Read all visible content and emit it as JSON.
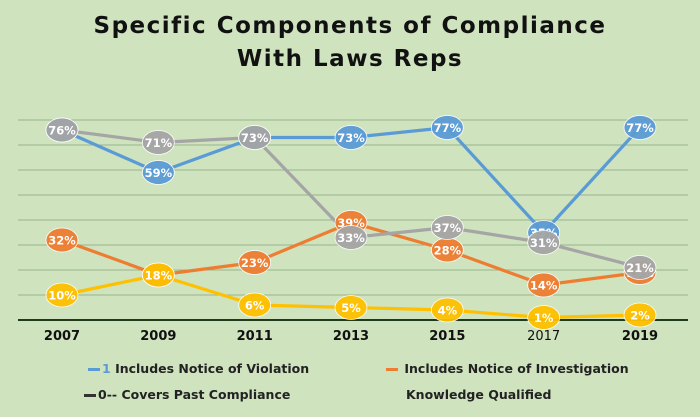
{
  "title_line1": "Specific Components of Compliance",
  "title_line2": "With Laws Reps",
  "chart_data": {
    "type": "line",
    "title": "Specific Components of Compliance With Laws Reps",
    "categories": [
      "2007",
      "2009",
      "2011",
      "2013",
      "2015",
      "2017",
      "2019"
    ],
    "ylim": [
      0,
      80
    ],
    "grid": true,
    "legend_position": "bottom",
    "series": [
      {
        "name": "Includes Notice of Violation",
        "color": "#5b9bd5",
        "values": [
          76,
          59,
          73,
          73,
          77,
          35,
          77
        ],
        "labels": [
          "76%",
          "59%",
          "73%",
          "73%",
          "77%",
          "35%",
          "77%"
        ]
      },
      {
        "name": "Includes Notice of Investigation",
        "color": "#ed7d31",
        "values": [
          32,
          18,
          23,
          39,
          28,
          14,
          19
        ],
        "labels": [
          "32%",
          "",
          "23%",
          "39%",
          "28%",
          "14%",
          "19%"
        ]
      },
      {
        "name": "Covers Past Compliance",
        "color": "#a5a5a5",
        "values": [
          76,
          71,
          73,
          33,
          37,
          31,
          21
        ],
        "labels": [
          "76%",
          "71%",
          "73%",
          "33%",
          "37%",
          "31%",
          "21%"
        ]
      },
      {
        "name": "Knowledge Qualified",
        "color": "#ffc000",
        "values": [
          10,
          18,
          6,
          5,
          4,
          1,
          2
        ],
        "labels": [
          "10%",
          "18%",
          "6%",
          "5%",
          "4%",
          "1%",
          "2%"
        ]
      }
    ]
  },
  "legend": [
    {
      "prefix": "1",
      "text": "Includes Notice of Violation",
      "color": "#5b9bd5"
    },
    {
      "prefix": "",
      "text": "Includes Notice of Investigation",
      "color": "#ed7d31"
    },
    {
      "prefix": "0--",
      "text": "Covers Past Compliance",
      "color": "#333333"
    },
    {
      "prefix": "",
      "text": "Knowledge Qualified",
      "color": ""
    }
  ]
}
